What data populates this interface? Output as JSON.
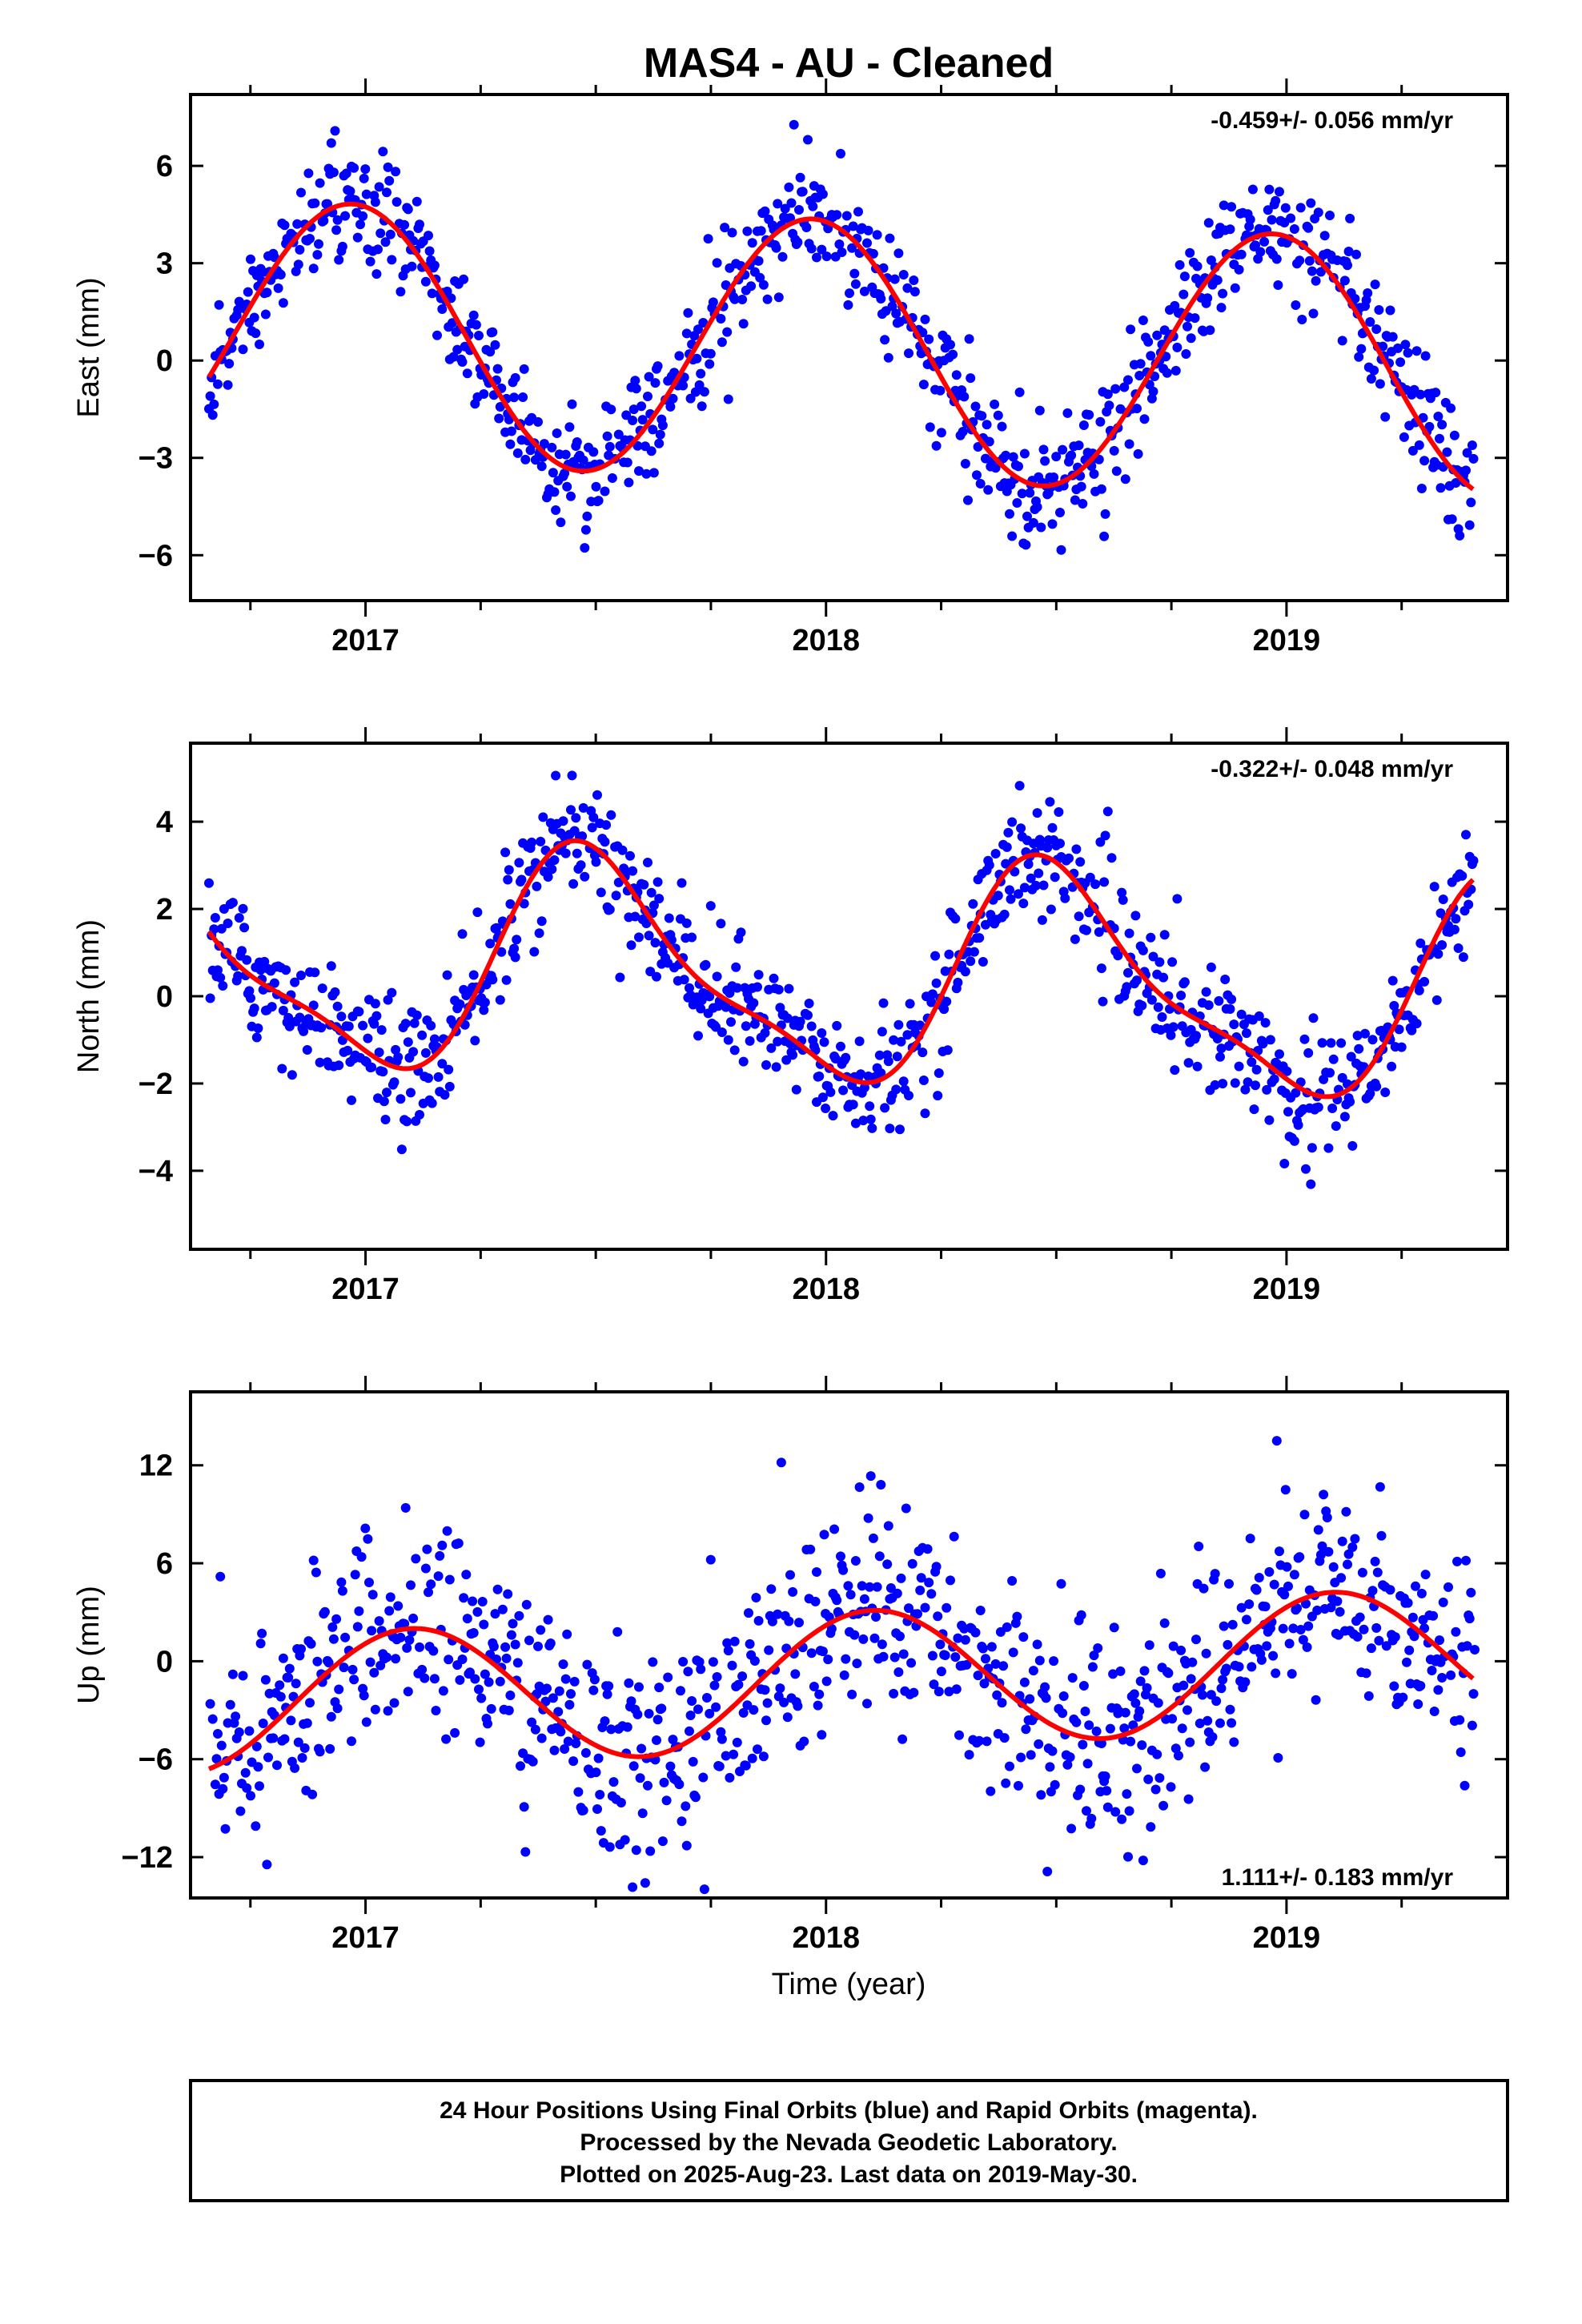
{
  "title": "MAS4  - AU - Cleaned",
  "xlabel": "Time (year)",
  "footer": {
    "line1": "24 Hour Positions Using Final Orbits (blue) and Rapid Orbits (magenta).",
    "line2": "Processed by the Nevada Geodetic Laboratory.",
    "line3": "Plotted on 2025-Aug-23. Last data on 2019-May-30."
  },
  "colors": {
    "points": "#0000ff",
    "fit": "#ff0000",
    "frame": "#000000"
  },
  "chart_data": [
    {
      "type": "scatter",
      "component": "east",
      "ylabel": "East (mm)",
      "rate_label": "-0.459+/- 0.056 mm/yr",
      "xlim": [
        2016.62,
        2019.48
      ],
      "ylim": [
        -7.4,
        8.2
      ],
      "yticks": [
        -6,
        -3,
        0,
        3,
        6
      ],
      "ytick_labels": [
        "−6",
        "−3",
        "0",
        "3",
        "6"
      ],
      "xticks": [
        2017,
        2018,
        2019
      ],
      "xtick_labels": [
        "2017",
        "2018",
        "2019"
      ],
      "fit": {
        "offset": 0.35,
        "rate": -0.459,
        "amplitude": 4.0,
        "peak": 2016.97,
        "semiannual_amp": 0.0,
        "semiannual_peak": 2017.0,
        "epoch": 2018.0
      },
      "scatter_sigma": 0.9,
      "annotation_position": "top-right"
    },
    {
      "type": "scatter",
      "component": "north",
      "ylabel": "North (mm)",
      "rate_label": "-0.322+/- 0.048 mm/yr",
      "xlim": [
        2016.62,
        2019.48
      ],
      "ylim": [
        -5.8,
        5.8
      ],
      "yticks": [
        -4,
        -2,
        0,
        2,
        4
      ],
      "ytick_labels": [
        "−4",
        "−2",
        "0",
        "2",
        "4"
      ],
      "xticks": [
        2017,
        2018,
        2019
      ],
      "xtick_labels": [
        "2017",
        "2018",
        "2019"
      ],
      "fit": {
        "offset": 0.45,
        "rate": -0.322,
        "amplitude": 2.4,
        "peak": 2017.5,
        "semiannual_amp": 0.7,
        "semiannual_peak": 2017.42,
        "epoch": 2018.0
      },
      "scatter_sigma": 0.7,
      "annotation_position": "top-right"
    },
    {
      "type": "scatter",
      "component": "up",
      "ylabel": "Up (mm)",
      "rate_label": "1.111+/- 0.183 mm/yr",
      "xlim": [
        2016.62,
        2019.48
      ],
      "ylim": [
        -14.5,
        16.5
      ],
      "yticks": [
        -12,
        -6,
        0,
        6,
        12
      ],
      "ytick_labels": [
        "−12",
        "−6",
        "0",
        "6",
        "12"
      ],
      "xticks": [
        2017,
        2018,
        2019
      ],
      "xtick_labels": [
        "2017",
        "2018",
        "2019"
      ],
      "fit": {
        "offset": -1.2,
        "rate": 1.111,
        "amplitude": 4.2,
        "peak": 2018.1,
        "semiannual_amp": 0.0,
        "semiannual_peak": 2018.0,
        "epoch": 2018.0
      },
      "scatter_sigma": 3.2,
      "annotation_position": "bottom-right"
    }
  ]
}
